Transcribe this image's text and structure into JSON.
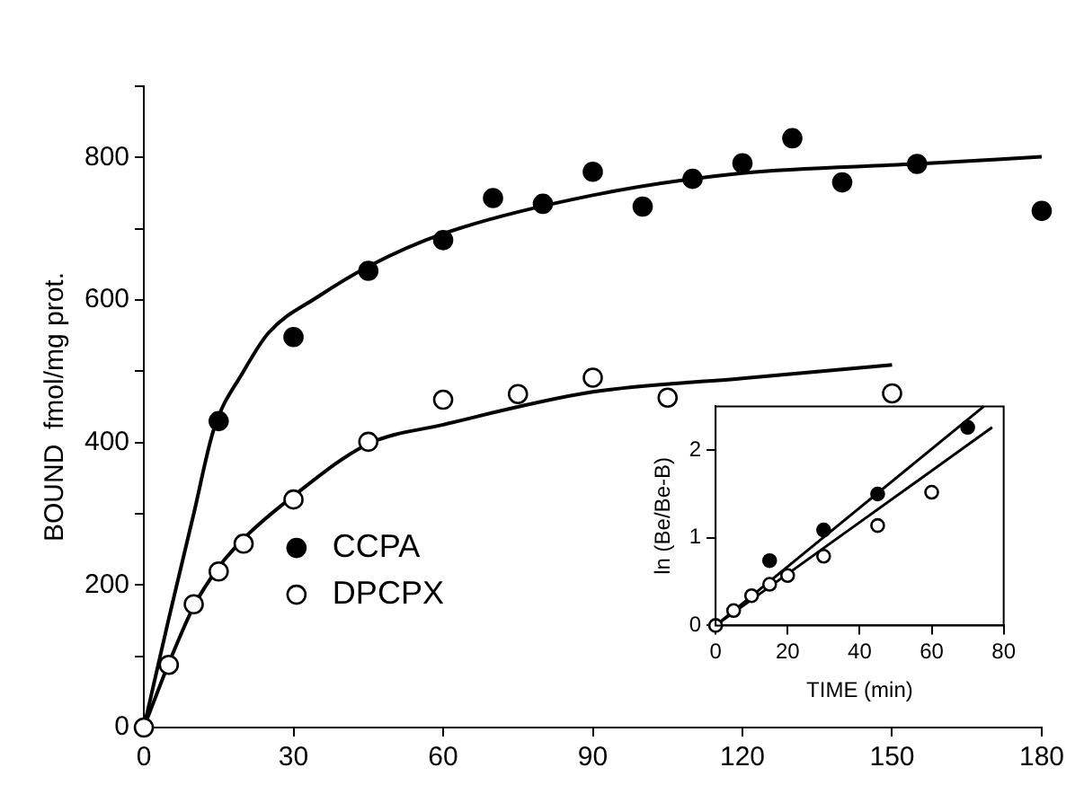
{
  "chart_data": [
    {
      "type": "scatter",
      "ylabel": "BOUND  fmol/mg prot.",
      "xlim": [
        0,
        180
      ],
      "ylim": [
        0,
        900
      ],
      "xticks": [
        0,
        30,
        60,
        90,
        120,
        150,
        180
      ],
      "yticks": [
        0,
        {
          "value": 100,
          "label": null
        },
        200,
        {
          "value": 300,
          "label": null
        },
        400,
        {
          "value": 500,
          "label": null
        },
        600,
        {
          "value": 700,
          "label": null
        },
        800,
        {
          "value": 900,
          "label": null
        }
      ],
      "legend": "bottom left",
      "series": [
        {
          "name": "CCPA",
          "marker": "circle",
          "color": "#000000",
          "x": [
            15,
            30,
            45,
            60,
            70,
            80,
            90,
            100,
            110,
            120,
            130,
            140,
            155,
            180
          ],
          "values": [
            430,
            548,
            641,
            684,
            743,
            735,
            780,
            731,
            770,
            792,
            827,
            765,
            791,
            725
          ]
        },
        {
          "name": "DPCPX",
          "marker": "circle",
          "color": "#ffffff",
          "x": [
            0,
            5,
            10,
            15,
            20,
            30,
            45,
            60,
            75,
            90,
            105,
            150
          ],
          "values": [
            0,
            88,
            173,
            219,
            258,
            320,
            401,
            460,
            468,
            491,
            463,
            469
          ]
        },
        {
          "type": "line",
          "marker": "none",
          "color": "#000000",
          "x": [
            0,
            5,
            10,
            14,
            20,
            25,
            35,
            45,
            60,
            90,
            120,
            155,
            180
          ],
          "values": [
            0,
            153,
            300,
            418,
            500,
            554,
            605,
            647,
            693,
            747,
            778,
            791,
            801
          ]
        },
        {
          "type": "line",
          "marker": "none",
          "color": "#000000",
          "x": [
            0,
            5,
            10,
            15,
            20,
            30,
            45,
            60,
            90,
            120,
            150
          ],
          "values": [
            0,
            90,
            170,
            225,
            265,
            325,
            398,
            425,
            471,
            490,
            509
          ]
        }
      ]
    },
    {
      "type": "scatter",
      "xlabel": "TIME (min)",
      "ylabel": "ln (Be/Be-B)",
      "xlim": [
        0,
        80
      ],
      "ylim": [
        0,
        2.5
      ],
      "xticks": [
        0,
        20,
        40,
        60,
        80
      ],
      "yticks": [
        0,
        1,
        2
      ],
      "series": [
        {
          "marker": "circle",
          "color": "#000000",
          "x": [
            15,
            30,
            45,
            70
          ],
          "values": [
            0.74,
            1.09,
            1.5,
            2.26
          ]
        },
        {
          "marker": "circle",
          "color": "#ffffff",
          "x": [
            0,
            5,
            10,
            15,
            20,
            30,
            45,
            60
          ],
          "values": [
            0,
            0.17,
            0.34,
            0.47,
            0.57,
            0.79,
            1.14,
            1.52
          ]
        },
        {
          "type": "line",
          "marker": "none",
          "color": "#000000",
          "x": [
            0,
            74.5
          ],
          "values": [
            0,
            2.5
          ]
        },
        {
          "type": "line",
          "marker": "none",
          "color": "#000000",
          "x": [
            0,
            76.8
          ],
          "values": [
            0,
            2.26
          ]
        }
      ]
    }
  ]
}
